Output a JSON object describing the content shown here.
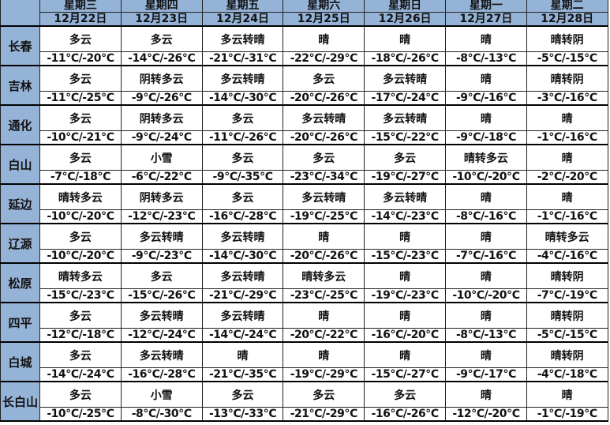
{
  "header": {
    "weekdays": [
      "星期三",
      "星期四",
      "星期五",
      "星期六",
      "星期日",
      "星期一",
      "星期二"
    ],
    "dates": [
      "12月22日",
      "12月23日",
      "12月24日",
      "12月25日",
      "12月26日",
      "12月27日",
      "12月28日"
    ]
  },
  "rows": [
    {
      "city": "长春",
      "weather": [
        "多云",
        "多云",
        "多云转晴",
        "晴",
        "晴",
        "晴",
        "晴转阴"
      ],
      "temps": [
        "-11℃/-20℃",
        "-14℃/-26℃",
        "-21℃/-31℃",
        "-22℃/-29℃",
        "-18℃/-26℃",
        "-8℃/-13℃",
        "-5℃/-15℃"
      ]
    },
    {
      "city": "吉林",
      "weather": [
        "多云",
        "阴转多云",
        "多云转晴",
        "多云",
        "多云转晴",
        "晴",
        "晴转阴"
      ],
      "temps": [
        "-11℃/-25℃",
        "-9℃/-26℃",
        "-14℃/-30℃",
        "-20℃/-26℃",
        "-17℃/-24℃",
        "-9℃/-16℃",
        "-3℃/-16℃"
      ]
    },
    {
      "city": "通化",
      "weather": [
        "多云",
        "阴转多云",
        "多云",
        "多云转晴",
        "多云转晴",
        "晴",
        "晴"
      ],
      "temps": [
        "-10℃/-21℃",
        "-9℃/-24℃",
        "-11℃/-26℃",
        "-20℃/-26℃",
        "-15℃/-22℃",
        "-9℃/-18℃",
        "-1℃/-16℃"
      ]
    },
    {
      "city": "白山",
      "weather": [
        "多云",
        "小雪",
        "多云",
        "多云",
        "多云",
        "晴转多云",
        "晴"
      ],
      "temps": [
        "-7℃/-18℃",
        "-6℃/-22℃",
        "-9℃/-35℃",
        "-23℃/-34℃",
        "-19℃/-27℃",
        "-10℃/-20℃",
        "-2℃/-20℃"
      ]
    },
    {
      "city": "延边",
      "weather": [
        "晴转多云",
        "阴转多云",
        "多云",
        "多云转晴",
        "多云转晴",
        "晴",
        "晴"
      ],
      "temps": [
        "-10℃/-20℃",
        "-12℃/-23℃",
        "-16℃/-28℃",
        "-19℃/-25℃",
        "-14℃/-23℃",
        "-8℃/-16℃",
        "-1℃/-16℃"
      ]
    },
    {
      "city": "辽源",
      "weather": [
        "多云",
        "多云转晴",
        "多云转晴",
        "晴",
        "晴",
        "晴",
        "晴转多云"
      ],
      "temps": [
        "-10℃/-20℃",
        "-9℃/-23℃",
        "-14℃/-30℃",
        "-20℃/-26℃",
        "-15℃/-23℃",
        "-7℃/-16℃",
        "-4℃/-16℃"
      ]
    },
    {
      "city": "松原",
      "weather": [
        "晴转多云",
        "多云",
        "多云转晴",
        "晴转多云",
        "晴",
        "晴",
        "晴转阴"
      ],
      "temps": [
        "-15℃/-23℃",
        "-15℃/-26℃",
        "-21℃/-29℃",
        "-23℃/-25℃",
        "-19℃/-23℃",
        "-10℃/-20℃",
        "-7℃/-19℃"
      ]
    },
    {
      "city": "四平",
      "weather": [
        "多云",
        "多云转晴",
        "多云转晴",
        "晴",
        "晴",
        "晴",
        "晴转阴"
      ],
      "temps": [
        "-12℃/-18℃",
        "-12℃/-24℃",
        "-14℃/-24℃",
        "-20℃/-22℃",
        "-16℃/-20℃",
        "-8℃/-13℃",
        "-5℃/-15℃"
      ]
    },
    {
      "city": "白城",
      "weather": [
        "多云",
        "多云转晴",
        "晴",
        "晴",
        "晴",
        "晴",
        "晴转阴"
      ],
      "temps": [
        "-14℃/-24℃",
        "-16℃/-28℃",
        "-21℃/-35℃",
        "-19℃/-29℃",
        "-15℃/-27℃",
        "-9℃/-17℃",
        "-4℃/-18℃"
      ]
    },
    {
      "city": "长白山",
      "weather": [
        "多云",
        "小雪",
        "多云",
        "多云",
        "多云",
        "晴",
        "晴"
      ],
      "temps": [
        "-10℃/-25℃",
        "-8℃/-30℃",
        "-13℃/-33℃",
        "-21℃/-29℃",
        "-16℃/-26℃",
        "-12℃/-20℃",
        "-1℃/-19℃"
      ]
    }
  ]
}
